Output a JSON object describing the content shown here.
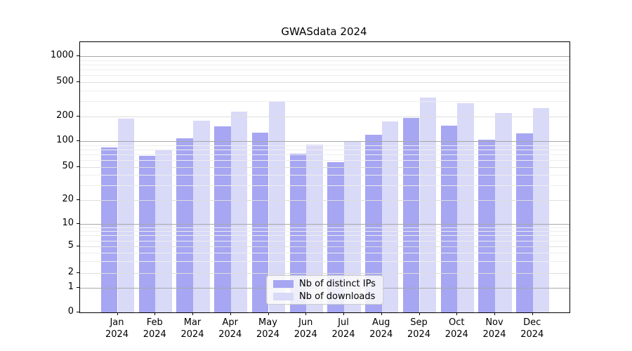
{
  "title": "GWASdata 2024",
  "legend": {
    "items": [
      {
        "label": "Nb of distinct IPs",
        "color": "#a6a6f2"
      },
      {
        "label": "Nb of downloads",
        "color": "#d9d9f8"
      }
    ]
  },
  "y_axis": {
    "tick_labels": [
      "0",
      "1",
      "2",
      "5",
      "10",
      "20",
      "50",
      "100",
      "200",
      "500",
      "1000"
    ],
    "tick_values": [
      0,
      1,
      2,
      5,
      10,
      20,
      50,
      100,
      200,
      500,
      1000
    ]
  },
  "chart_data": {
    "type": "bar",
    "title": "GWASdata 2024",
    "categories": [
      "Jan 2024",
      "Feb 2024",
      "Mar 2024",
      "Apr 2024",
      "May 2024",
      "Jun 2024",
      "Jul 2024",
      "Aug 2024",
      "Sep 2024",
      "Oct 2024",
      "Nov 2024",
      "Dec 2024"
    ],
    "series": [
      {
        "name": "Nb of distinct IPs",
        "color": "#a6a6f2",
        "values": [
          84,
          68,
          108,
          151,
          128,
          71,
          57,
          120,
          192,
          154,
          105,
          124
        ]
      },
      {
        "name": "Nb of downloads",
        "color": "#d9d9f8",
        "values": [
          190,
          80,
          178,
          227,
          300,
          91,
          100,
          173,
          330,
          284,
          220,
          250
        ]
      }
    ],
    "xlabel": "",
    "ylabel": "",
    "yscale": "symlog",
    "yticks": [
      0,
      1,
      2,
      5,
      10,
      20,
      50,
      100,
      200,
      500,
      1000
    ],
    "ylim": [
      0,
      1440
    ],
    "grid": true,
    "gridlines_over_bars": true,
    "legend_position": "lower center"
  }
}
